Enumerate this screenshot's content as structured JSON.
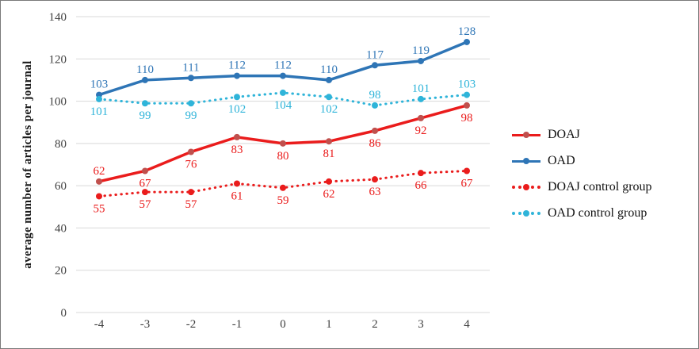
{
  "chart_data": {
    "type": "line",
    "x": [
      "-4",
      "-3",
      "-2",
      "-1",
      "0",
      "1",
      "2",
      "3",
      "4"
    ],
    "title": "",
    "xlabel": "",
    "ylabel": "average number of articles per journal",
    "ylim": [
      0,
      140
    ],
    "ytick_step": 20,
    "grid": true,
    "legend_position": "right",
    "grid_color": "#d9d9d9",
    "axis_text_color": "#404040",
    "series": [
      {
        "name": "DOAJ",
        "color": "#ea1c1c",
        "marker_color": "#c0504d",
        "style": "solid",
        "values": [
          62,
          67,
          76,
          83,
          80,
          81,
          86,
          92,
          98
        ],
        "label_pos": [
          "above",
          "below",
          "below",
          "below",
          "below",
          "below",
          "below",
          "below",
          "below"
        ]
      },
      {
        "name": "OAD",
        "color": "#2e75b6",
        "marker_color": "#2e75b6",
        "style": "solid",
        "values": [
          103,
          110,
          111,
          112,
          112,
          110,
          117,
          119,
          128
        ],
        "label_pos": [
          "above",
          "above",
          "above",
          "above",
          "above",
          "above",
          "above",
          "above",
          "above"
        ]
      },
      {
        "name": "DOAJ control group",
        "color": "#ea1c1c",
        "marker_color": "#ea1c1c",
        "style": "dotted",
        "values": [
          55,
          57,
          57,
          61,
          59,
          62,
          63,
          66,
          67
        ],
        "label_pos": [
          "below",
          "below",
          "below",
          "below",
          "below",
          "below",
          "below",
          "below",
          "below"
        ]
      },
      {
        "name": "OAD control group",
        "color": "#2fb4d9",
        "marker_color": "#2fb4d9",
        "style": "dotted",
        "values": [
          101,
          99,
          99,
          102,
          104,
          102,
          98,
          101,
          103
        ],
        "label_pos": [
          "below",
          "below",
          "below",
          "below",
          "below",
          "below",
          "above",
          "above",
          "above"
        ]
      }
    ]
  }
}
